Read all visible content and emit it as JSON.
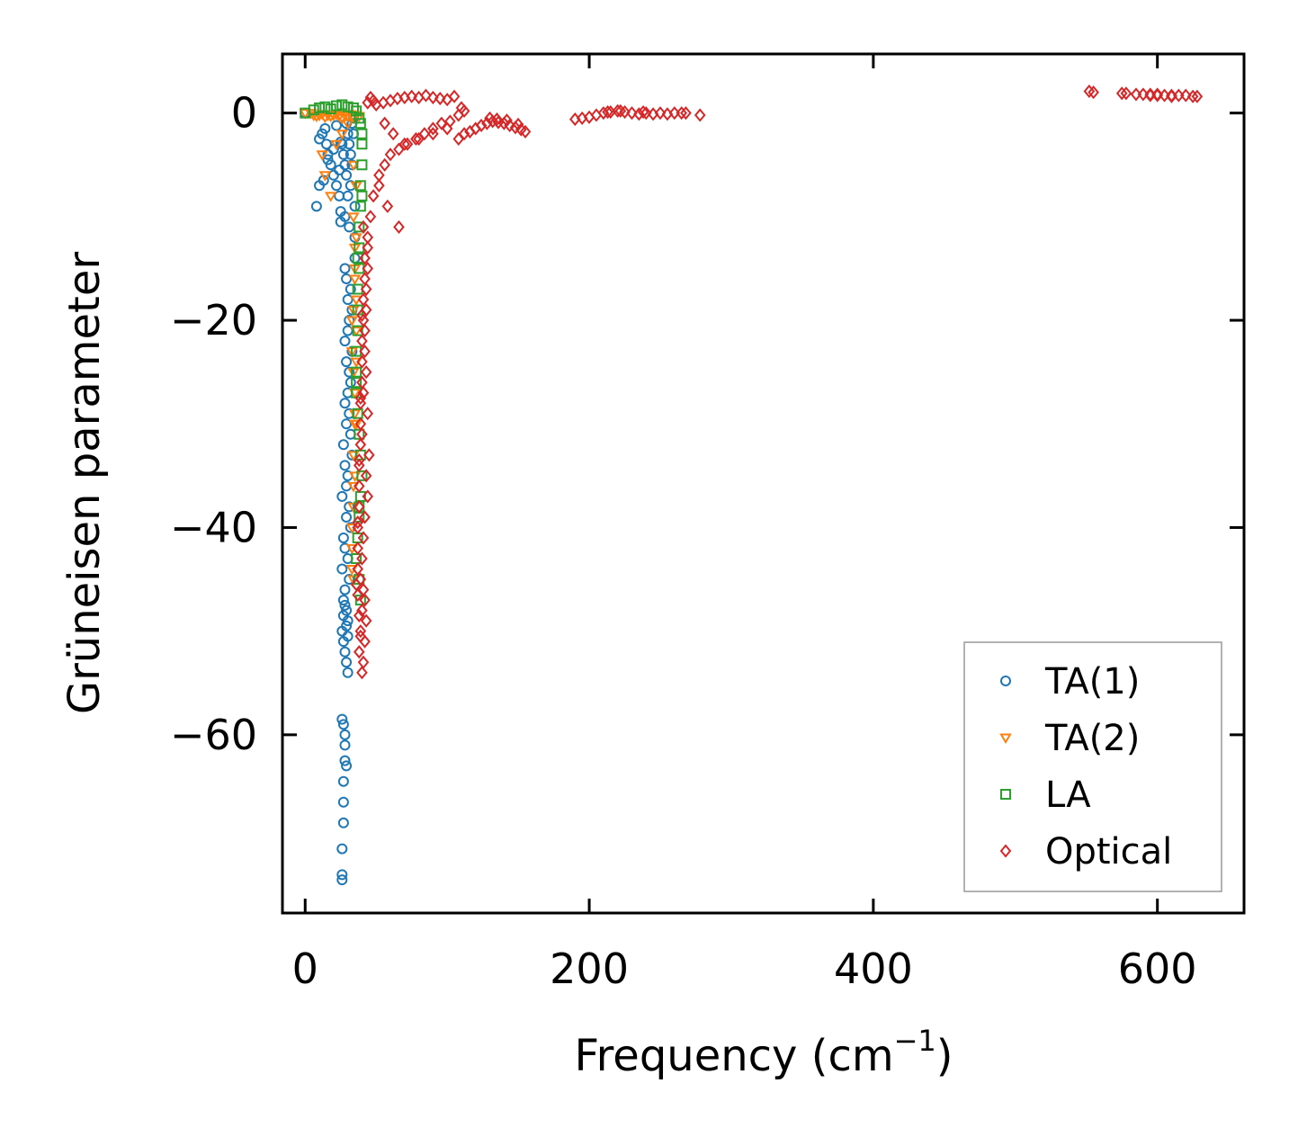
{
  "chart_data": {
    "type": "scatter",
    "title": "",
    "xlabel": "Frequency (cm",
    "xlabel_sup": "−1",
    "xlabel_close": ")",
    "ylabel": "Grüneisen parameter",
    "xlim": [
      -16,
      661
    ],
    "ylim": [
      -77.2,
      5.7
    ],
    "xticks": [
      0,
      200,
      400,
      600
    ],
    "xtick_labels": [
      "0",
      "200",
      "400",
      "600"
    ],
    "yticks": [
      0,
      -20,
      -40,
      -60
    ],
    "ytick_labels": [
      "0",
      "−20",
      "−40",
      "−60"
    ],
    "legend_position": "lower-right",
    "series": [
      {
        "name": "TA(1)",
        "marker": "circle",
        "color": "#1f77b4",
        "x": [
          0,
          8,
          10,
          12,
          14,
          15,
          16,
          18,
          20,
          22,
          24,
          26,
          27,
          28,
          28,
          29,
          29,
          30,
          30,
          31,
          31,
          32,
          32,
          33,
          33,
          34,
          34,
          35,
          35,
          35,
          28,
          29,
          30,
          31,
          32,
          33,
          28,
          29,
          30,
          31,
          32,
          33,
          28,
          29,
          30,
          31,
          32,
          33,
          27,
          28,
          29,
          30,
          31,
          32,
          26,
          27,
          28,
          29,
          30,
          31,
          26,
          27,
          28,
          29,
          30,
          26,
          27,
          28,
          29,
          30,
          27,
          28,
          29,
          30,
          26,
          27,
          28,
          29,
          27,
          28,
          28,
          27,
          27,
          26,
          26,
          26,
          25,
          25,
          24,
          10,
          13,
          16,
          20,
          22,
          25
        ],
        "y": [
          0,
          -9,
          -2.5,
          -2,
          -1.5,
          -3,
          -4,
          -5,
          -6,
          -7,
          -8,
          -3,
          -4,
          -5,
          -10,
          -1,
          -6,
          -2,
          -8,
          -3,
          -11,
          -4,
          -7,
          -1,
          -5,
          -2,
          -0.5,
          -9,
          -12,
          -14,
          -15,
          -16,
          -18,
          -20,
          -17,
          -19,
          -22,
          -24,
          -21,
          -25,
          -26,
          -23,
          -28,
          -30,
          -27,
          -29,
          -31,
          -33,
          -32,
          -34,
          -36,
          -35,
          -38,
          -40,
          -37,
          -41,
          -42,
          -39,
          -43,
          -45,
          -44,
          -47,
          -46,
          -48,
          -49,
          -50,
          -51,
          -52,
          -53,
          -54,
          -48.5,
          -47.5,
          -49.5,
          -50.5,
          -58.5,
          -59,
          -61,
          -63,
          -64.5,
          -62.5,
          -60,
          -66.5,
          -68.5,
          -71,
          -73.5,
          -74,
          -9.5,
          -10.5,
          -5.5,
          -7,
          -6.5,
          -4.5,
          -3.5,
          -1.2,
          -2.8
        ],
        "size": 5
      },
      {
        "name": "TA(2)",
        "marker": "triangle-down",
        "color": "#ff7f0e",
        "x": [
          0,
          4,
          6,
          8,
          10,
          12,
          14,
          16,
          18,
          20,
          22,
          24,
          26,
          28,
          30,
          32,
          34,
          36,
          38,
          12,
          14,
          18,
          22,
          26,
          30,
          34,
          36,
          34,
          35,
          35,
          36,
          36,
          36,
          35,
          35,
          34,
          34,
          34,
          33,
          33,
          33,
          34,
          35,
          36,
          34,
          33,
          35,
          36,
          34,
          33,
          35
        ],
        "y": [
          0,
          0,
          -0.2,
          -0.3,
          -0.2,
          -0.1,
          -0.4,
          -0.2,
          -0.3,
          -0.2,
          -0.1,
          -0.3,
          -0.5,
          -0.2,
          -0.3,
          -0.1,
          -0.4,
          -0.2,
          -0.3,
          -4,
          -6,
          -8,
          -3,
          -2,
          -1,
          -5,
          -7,
          -10,
          -13,
          -16,
          -18,
          -21,
          -24,
          -27,
          -30,
          -33,
          -36,
          -38,
          -40,
          -42,
          -44,
          -45,
          -35,
          -30,
          -25,
          -20,
          -15,
          -12,
          -19,
          -23,
          -29
        ],
        "size": 5
      },
      {
        "name": "LA",
        "marker": "square",
        "color": "#2ca02c",
        "x": [
          0,
          6,
          10,
          14,
          18,
          22,
          26,
          30,
          34,
          36,
          38,
          39,
          40,
          40,
          40,
          39,
          39,
          38,
          38,
          38,
          37,
          37,
          37,
          36,
          36,
          36,
          37,
          38,
          39,
          40,
          39,
          38,
          37,
          36,
          38,
          39,
          40,
          37,
          36,
          38
        ],
        "y": [
          0,
          0.3,
          0.5,
          0.6,
          0.4,
          0.7,
          0.8,
          0.6,
          0.5,
          0.2,
          -0.5,
          -1,
          -2,
          -3,
          -5,
          -7,
          -9,
          -11,
          -13,
          -15,
          -17,
          -19,
          -21,
          -23,
          -25,
          -27,
          -29,
          -31,
          -33,
          -35,
          -37,
          -39,
          -41,
          -43,
          -45,
          -47,
          -8,
          -14,
          -26,
          -38
        ],
        "size": 5
      },
      {
        "name": "Optical",
        "marker": "diamond",
        "color": "#d62728",
        "x": [
          44,
          46,
          48,
          50,
          55,
          60,
          65,
          70,
          75,
          80,
          85,
          90,
          95,
          100,
          105,
          110,
          112,
          108,
          102,
          96,
          90,
          84,
          78,
          72,
          66,
          60,
          56,
          52,
          48,
          46,
          44,
          42,
          42,
          41,
          41,
          40,
          40,
          40,
          39,
          39,
          39,
          38,
          38,
          38,
          37,
          37,
          37,
          44,
          43,
          42,
          43,
          44,
          45,
          44,
          43,
          42,
          41,
          40,
          43,
          44,
          42,
          41,
          40,
          39,
          42,
          43,
          41,
          40,
          39,
          38,
          42,
          41,
          40,
          39,
          38,
          37,
          41,
          40,
          39,
          38,
          37,
          36,
          108,
          112,
          116,
          120,
          124,
          128,
          132,
          136,
          140,
          144,
          148,
          152,
          155,
          130,
          135,
          142,
          150,
          190,
          195,
          200,
          205,
          210,
          215,
          220,
          225,
          230,
          235,
          240,
          245,
          250,
          255,
          260,
          265,
          268,
          278,
          213,
          222,
          238,
          552,
          555,
          575,
          578,
          585,
          590,
          595,
          600,
          605,
          610,
          615,
          620,
          625,
          628,
          595,
          610,
          600,
          56,
          62,
          70,
          80,
          90,
          100,
          52,
          58,
          66
        ],
        "y": [
          1,
          1.5,
          1.2,
          0.8,
          1,
          1.2,
          1.4,
          1.5,
          1.6,
          1.5,
          1.7,
          1.5,
          1.4,
          1.3,
          1.6,
          0.5,
          0.2,
          -0.2,
          -0.8,
          -1,
          -1.5,
          -2,
          -2.5,
          -3,
          -3.5,
          -4,
          -5,
          -6,
          -8,
          -10,
          -12,
          -14,
          -16,
          -18,
          -20,
          -22,
          -24,
          -26,
          -28,
          -30,
          -32,
          -34,
          -36,
          -38,
          -40,
          -42,
          -44,
          -13,
          -17,
          -21,
          -25,
          -29,
          -33,
          -15,
          -19,
          -23,
          -27,
          -31,
          -35,
          -37,
          -39,
          -41,
          -43,
          -45,
          -47,
          -49,
          -46,
          -48,
          -50,
          -52,
          -51,
          -53,
          -54,
          -50.5,
          -48.5,
          -46.5,
          -11,
          -19.5,
          -27.5,
          -33.5,
          -39.5,
          -45.5,
          -2.5,
          -2,
          -1.8,
          -1.5,
          -1.2,
          -1.0,
          -0.8,
          -0.9,
          -1.0,
          -1.2,
          -1.4,
          -1.6,
          -1.8,
          -0.5,
          -0.6,
          -0.7,
          -1.1,
          -0.6,
          -0.5,
          -0.4,
          -0.2,
          0,
          0.1,
          0.2,
          0.1,
          0,
          -0.1,
          0,
          -0.1,
          0,
          -0.1,
          0,
          0,
          0,
          -0.2,
          0.1,
          0.2,
          0.1,
          2.1,
          2.0,
          1.9,
          1.9,
          1.8,
          1.8,
          1.8,
          1.8,
          1.7,
          1.7,
          1.7,
          1.7,
          1.6,
          1.6,
          1.7,
          1.6,
          1.7,
          -1,
          -2,
          -3,
          -2.5,
          -2,
          -1.5,
          -7,
          -9,
          -11
        ],
        "size": 5
      }
    ]
  }
}
